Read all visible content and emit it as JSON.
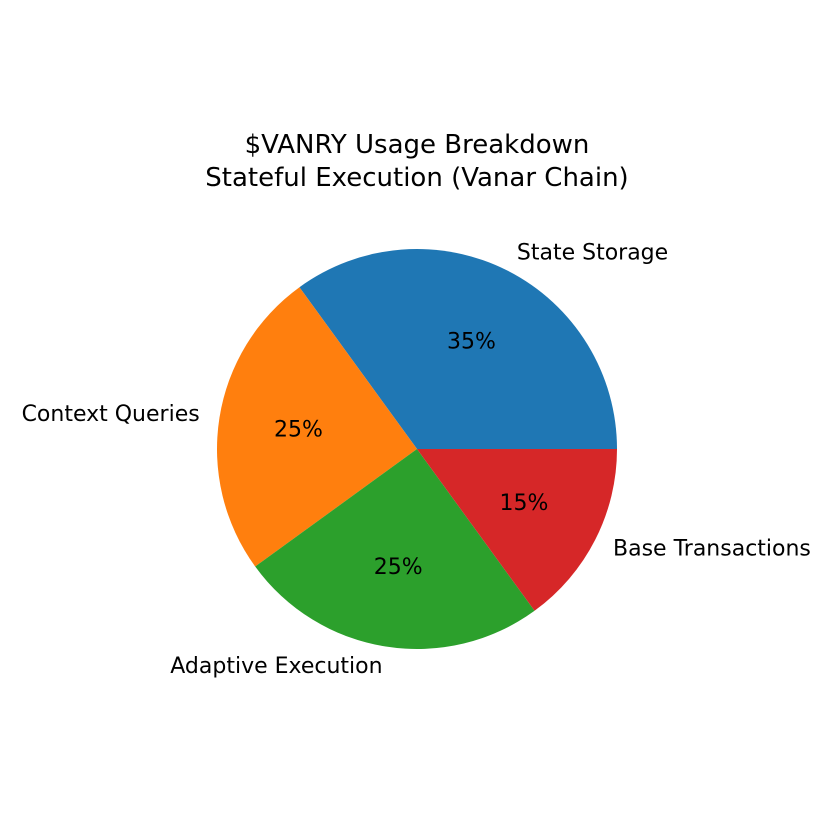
{
  "chart_data": {
    "type": "pie",
    "title": "$VANRY Usage Breakdown\nStateful Execution (Vanar Chain)",
    "categories": [
      "State Storage",
      "Context Queries",
      "Adaptive Execution",
      "Base Transactions"
    ],
    "values": [
      35,
      25,
      25,
      15
    ],
    "value_labels": [
      "35%",
      "25%",
      "25%",
      "15%"
    ],
    "colors": [
      "#1f77b4",
      "#ff7f0e",
      "#2ca02c",
      "#d62728"
    ],
    "start_angle_deg": 0,
    "direction": "counterclockwise",
    "legend": "none"
  }
}
